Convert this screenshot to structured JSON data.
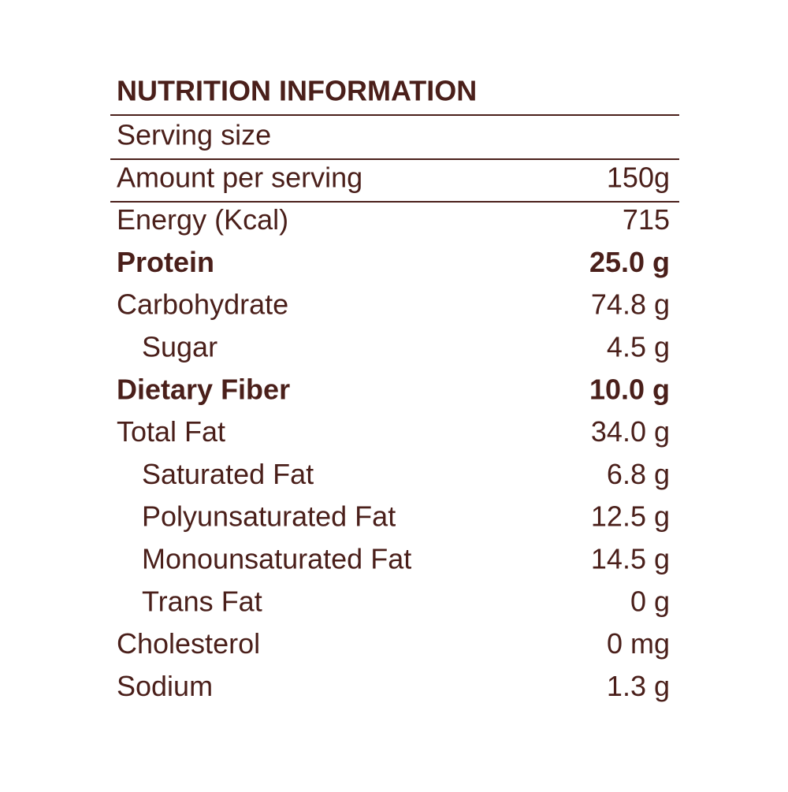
{
  "header": {
    "title": "NUTRITION INFORMATION"
  },
  "table": {
    "rows": [
      {
        "label": "Serving size"
      },
      {
        "label": "Amount per serving",
        "value": "150g"
      },
      {
        "label": "Energy (Kcal)",
        "value": "715"
      },
      {
        "label": "Protein",
        "value": "25.0 g",
        "bold": true
      },
      {
        "label": "Carbohydrate",
        "value": "74.8 g"
      },
      {
        "label": "Sugar",
        "value": "4.5 g",
        "indent": true
      },
      {
        "label": "Dietary Fiber",
        "value": "10.0 g",
        "bold": true
      },
      {
        "label": "Total Fat",
        "value": "34.0 g"
      },
      {
        "label": "Saturated Fat",
        "value": "6.8 g",
        "indent": true
      },
      {
        "label": "Polyunsaturated Fat",
        "value": "12.5 g",
        "indent": true
      },
      {
        "label": "Monounsaturated Fat",
        "value": "14.5 g",
        "indent": true
      },
      {
        "label": "Trans Fat",
        "value": "0 g",
        "indent": true
      },
      {
        "label": "Cholesterol",
        "value": "0 mg"
      },
      {
        "label": "Sodium",
        "value": "1.3 g"
      }
    ]
  }
}
